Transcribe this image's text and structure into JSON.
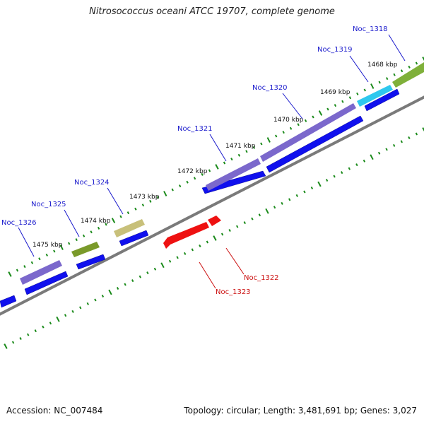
{
  "title": "Nitrosococcus oceani ATCC 19707, complete genome",
  "footer": {
    "accession": "Accession: NC_007484",
    "summary": "Topology: circular; Length: 3,481,691 bp; Genes: 3,027"
  },
  "scale_labels": [
    "1468 kbp",
    "1469 kbp",
    "1470 kbp",
    "1471 kbp",
    "1472 kbp",
    "1473 kbp",
    "1474 kbp",
    "1475 kbp"
  ],
  "genes": [
    {
      "id": "Noc_1318",
      "strand": "+",
      "color": "#7fb03a"
    },
    {
      "id": "Noc_1319",
      "strand": "+",
      "color": "#2ec8ee"
    },
    {
      "id": "Noc_1320",
      "strand": "+",
      "color": "#7b68cc"
    },
    {
      "id": "Noc_1321",
      "strand": "+",
      "color": "#7b68cc"
    },
    {
      "id": "Noc_1322",
      "strand": "-",
      "color": "#ee1111"
    },
    {
      "id": "Noc_1323",
      "strand": "-",
      "color": "#ee1111"
    },
    {
      "id": "Noc_1324",
      "strand": "+",
      "color": "#c8c07a"
    },
    {
      "id": "Noc_1325",
      "strand": "+",
      "color": "#7a9a2a"
    },
    {
      "id": "Noc_1326",
      "strand": "+",
      "color": "#7b68cc"
    }
  ],
  "colors": {
    "cds": "#1010ee",
    "ticks": "#1a8a1a",
    "backbone": "#7a7a7a",
    "label_forward": "#1a1acc",
    "label_reverse": "#cc1111"
  }
}
